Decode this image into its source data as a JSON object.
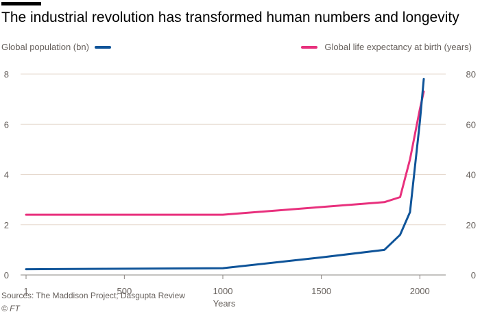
{
  "chart_data": {
    "type": "line",
    "title": "The industrial revolution has transformed human numbers and longevity",
    "xlabel": "Years",
    "x_ticks": [
      "1",
      "500",
      "1000",
      "1500",
      "2000"
    ],
    "xlim": [
      1,
      2020
    ],
    "left_axis": {
      "label": "Global population (bn)",
      "ylim": [
        0,
        8
      ],
      "ticks": [
        "0",
        "2",
        "4",
        "6",
        "8"
      ]
    },
    "right_axis": {
      "label": "Global life expectancy at birth (years)",
      "ylim": [
        0,
        80
      ],
      "ticks": [
        "0",
        "20",
        "40",
        "60",
        "80"
      ]
    },
    "grid": true,
    "series": [
      {
        "name": "Global population (bn)",
        "axis": "left",
        "color": "#0f5499",
        "x": [
          1,
          1000,
          1500,
          1820,
          1900,
          1950,
          2000,
          2020
        ],
        "y": [
          0.23,
          0.27,
          0.7,
          1.0,
          1.6,
          2.5,
          6.1,
          7.8
        ]
      },
      {
        "name": "Global life expectancy at birth (years)",
        "axis": "right",
        "color": "#e8307d",
        "x": [
          1,
          1000,
          1820,
          1900,
          1950,
          2000,
          2020
        ],
        "y": [
          24,
          24,
          29,
          31,
          46,
          66,
          73
        ]
      }
    ]
  },
  "footer": {
    "source": "Sources: The Maddison Project; Dasgupta Review",
    "credit": "© FT"
  }
}
